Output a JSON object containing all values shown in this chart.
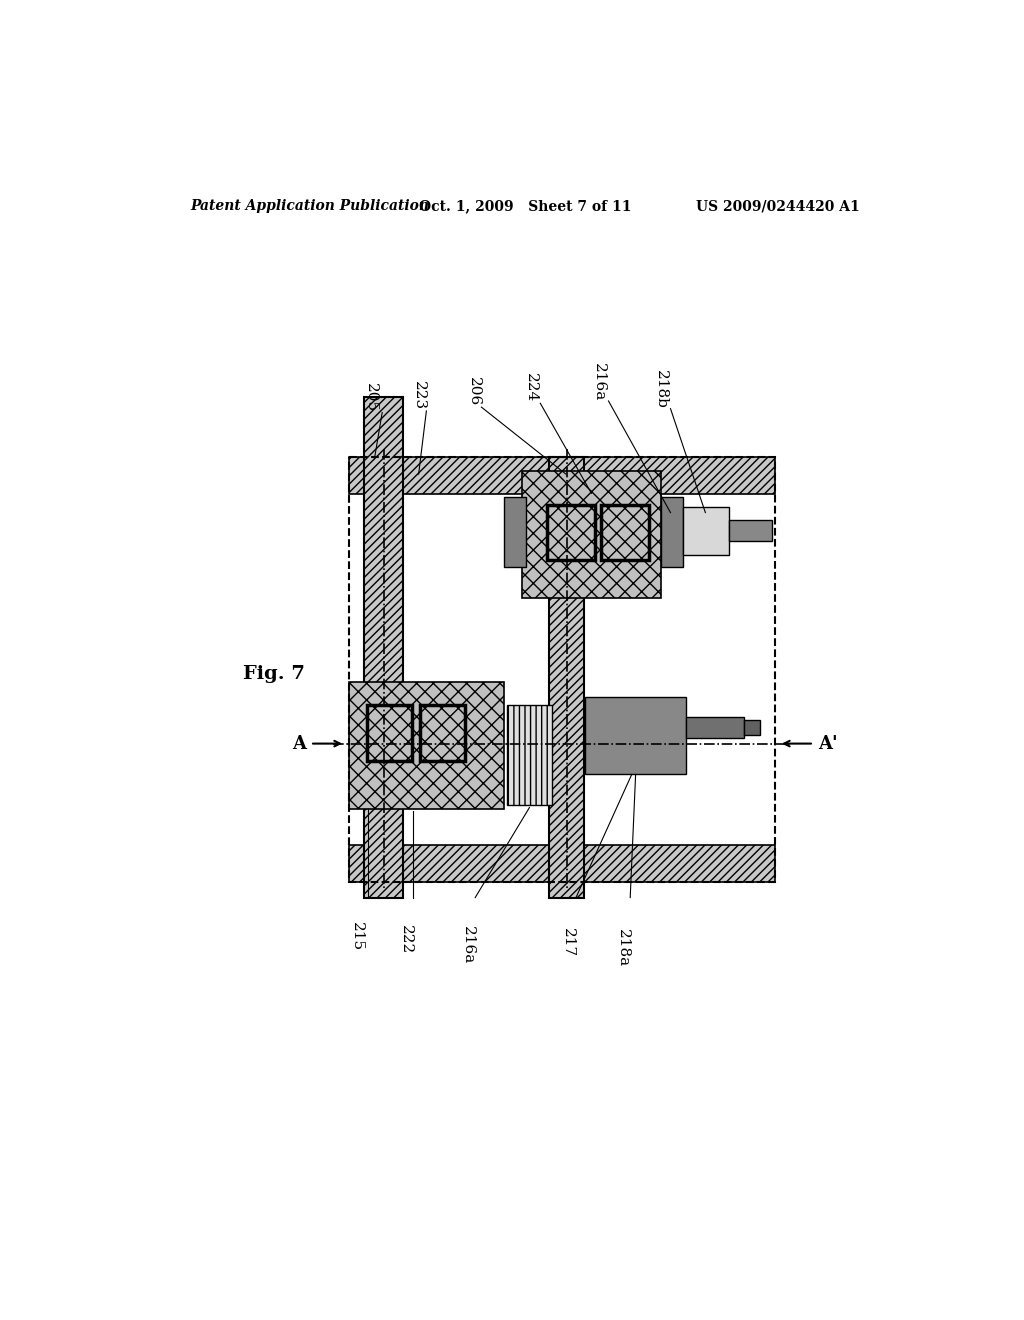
{
  "bg_color": "#ffffff",
  "fig_label": "Fig. 7",
  "header_left": "Patent Application Publication",
  "header_mid": "Oct. 1, 2009   Sheet 7 of 11",
  "header_right": "US 2009/0244420 A1"
}
